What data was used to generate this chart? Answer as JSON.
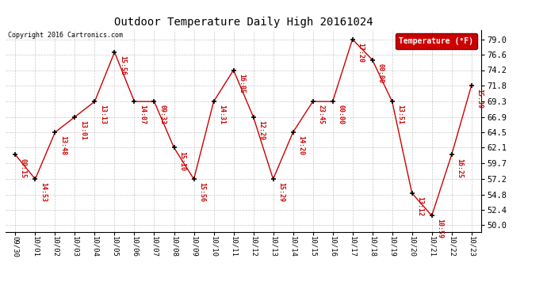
{
  "title": "Outdoor Temperature Daily High 20161024",
  "copyright": "Copyright 2016 Cartronics.com",
  "legend_label": "Temperature (°F)",
  "x_labels": [
    "09/30",
    "10/01",
    "10/02",
    "10/03",
    "10/04",
    "10/05",
    "10/06",
    "10/07",
    "10/08",
    "10/09",
    "10/10",
    "10/11",
    "10/12",
    "10/13",
    "10/14",
    "10/15",
    "10/16",
    "10/17",
    "10/18",
    "10/19",
    "10/20",
    "10/21",
    "10/22",
    "10/23"
  ],
  "y_values": [
    61.0,
    57.2,
    64.5,
    66.9,
    69.3,
    77.0,
    69.3,
    69.3,
    62.1,
    57.2,
    69.3,
    74.2,
    66.9,
    57.2,
    64.5,
    69.3,
    69.3,
    79.0,
    75.8,
    69.3,
    55.0,
    51.5,
    61.0,
    71.8
  ],
  "time_labels": [
    "00:15",
    "14:53",
    "13:48",
    "13:01",
    "13:13",
    "15:56",
    "14:07",
    "09:33",
    "15:10",
    "15:56",
    "14:31",
    "16:05",
    "12:29",
    "15:29",
    "14:20",
    "23:45",
    "00:00",
    "17:20",
    "00:00",
    "13:51",
    "13:12",
    "10:59",
    "16:25",
    "15:39"
  ],
  "y_ticks": [
    50.0,
    52.4,
    54.8,
    57.2,
    59.7,
    62.1,
    64.5,
    66.9,
    69.3,
    71.8,
    74.2,
    76.6,
    79.0
  ],
  "line_color": "#cc0000",
  "marker_color": "#000000",
  "label_color": "#cc0000",
  "background_color": "#ffffff",
  "grid_color": "#bbbbbb",
  "legend_bg": "#cc0000",
  "legend_text": "#ffffff"
}
